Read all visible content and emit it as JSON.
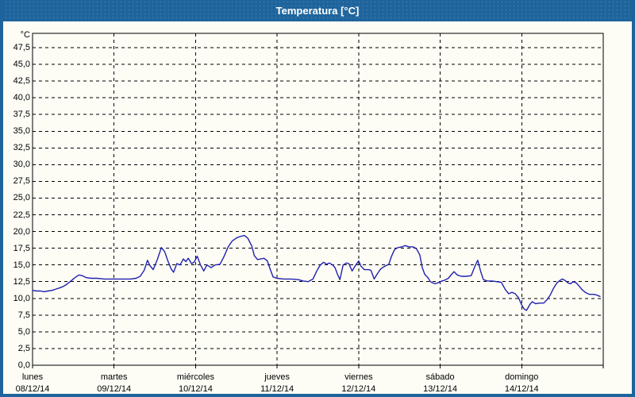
{
  "window": {
    "title": "Temperatura [°C]"
  },
  "colors": {
    "titlebar_bg": "#1e649c",
    "frame": "#1e649c",
    "content_bg": "#fdfdf6",
    "grid": "#000000",
    "line": "#2121b0",
    "title_text": "#ffffff",
    "label_text": "#000000"
  },
  "axes": {
    "y_unit": "°C",
    "y_ticks": [
      {
        "label": "47,5",
        "value": 47.5
      },
      {
        "label": "45,0",
        "value": 45.0
      },
      {
        "label": "42,5",
        "value": 42.5
      },
      {
        "label": "40,0",
        "value": 40.0
      },
      {
        "label": "37,5",
        "value": 37.5
      },
      {
        "label": "35,0",
        "value": 35.0
      },
      {
        "label": "32,5",
        "value": 32.5
      },
      {
        "label": "30,0",
        "value": 30.0
      },
      {
        "label": "27,5",
        "value": 27.5
      },
      {
        "label": "25,0",
        "value": 25.0
      },
      {
        "label": "22,5",
        "value": 22.5
      },
      {
        "label": "20,0",
        "value": 20.0
      },
      {
        "label": "17,5",
        "value": 17.5
      },
      {
        "label": "15,0",
        "value": 15.0
      },
      {
        "label": "12,5",
        "value": 12.5
      },
      {
        "label": "10,0",
        "value": 10.0
      },
      {
        "label": "7,5",
        "value": 7.5
      },
      {
        "label": "5,0",
        "value": 5.0
      },
      {
        "label": "2,5",
        "value": 2.5
      },
      {
        "label": "0,0",
        "value": 0.0
      }
    ],
    "x_days": [
      {
        "name": "lunes",
        "date": "08/12/14"
      },
      {
        "name": "martes",
        "date": "09/12/14"
      },
      {
        "name": "miércoles",
        "date": "10/12/14"
      },
      {
        "name": "jueves",
        "date": "11/12/14"
      },
      {
        "name": "viernes",
        "date": "12/12/14"
      },
      {
        "name": "sábado",
        "date": "13/12/14"
      },
      {
        "name": "domingo",
        "date": "14/12/14"
      }
    ]
  },
  "chart_data": {
    "type": "line",
    "title": "Temperatura [°C]",
    "ylabel": "°C",
    "ylim": [
      0,
      50
    ],
    "y_tick_step": 2.5,
    "grid": true,
    "legend": "none",
    "x_axis": "days, lunes 08/12/14 through domingo 14/12/14 (x = days since 08/12/14 00:00)",
    "series": [
      {
        "name": "Temperatura",
        "color": "#2121b0",
        "points": [
          [
            0.0,
            11.2
          ],
          [
            0.05,
            11.1
          ],
          [
            0.1,
            11.1
          ],
          [
            0.14,
            11.0
          ],
          [
            0.19,
            11.1
          ],
          [
            0.24,
            11.2
          ],
          [
            0.29,
            11.4
          ],
          [
            0.34,
            11.6
          ],
          [
            0.38,
            11.8
          ],
          [
            0.42,
            12.1
          ],
          [
            0.47,
            12.6
          ],
          [
            0.52,
            13.1
          ],
          [
            0.57,
            13.5
          ],
          [
            0.61,
            13.4
          ],
          [
            0.66,
            13.1
          ],
          [
            0.72,
            13.0
          ],
          [
            0.79,
            13.0
          ],
          [
            0.88,
            12.9
          ],
          [
            1.0,
            12.9
          ],
          [
            1.1,
            12.9
          ],
          [
            1.2,
            12.9
          ],
          [
            1.27,
            13.0
          ],
          [
            1.32,
            13.3
          ],
          [
            1.37,
            14.2
          ],
          [
            1.41,
            15.7
          ],
          [
            1.44,
            14.9
          ],
          [
            1.48,
            14.3
          ],
          [
            1.53,
            15.8
          ],
          [
            1.58,
            17.6
          ],
          [
            1.62,
            17.0
          ],
          [
            1.66,
            15.6
          ],
          [
            1.7,
            14.4
          ],
          [
            1.73,
            13.9
          ],
          [
            1.77,
            15.2
          ],
          [
            1.81,
            15.0
          ],
          [
            1.85,
            15.9
          ],
          [
            1.88,
            15.5
          ],
          [
            1.91,
            16.0
          ],
          [
            1.95,
            15.2
          ],
          [
            1.98,
            15.4
          ],
          [
            2.02,
            16.3
          ],
          [
            2.06,
            15.0
          ],
          [
            2.1,
            14.1
          ],
          [
            2.14,
            15.0
          ],
          [
            2.19,
            14.6
          ],
          [
            2.24,
            15.0
          ],
          [
            2.3,
            15.1
          ],
          [
            2.35,
            16.3
          ],
          [
            2.4,
            17.7
          ],
          [
            2.45,
            18.6
          ],
          [
            2.51,
            19.1
          ],
          [
            2.56,
            19.3
          ],
          [
            2.6,
            19.4
          ],
          [
            2.64,
            19.0
          ],
          [
            2.69,
            17.8
          ],
          [
            2.72,
            16.4
          ],
          [
            2.76,
            15.8
          ],
          [
            2.8,
            15.9
          ],
          [
            2.84,
            16.0
          ],
          [
            2.88,
            15.6
          ],
          [
            2.92,
            14.2
          ],
          [
            2.95,
            13.2
          ],
          [
            3.0,
            13.0
          ],
          [
            3.08,
            12.9
          ],
          [
            3.17,
            12.9
          ],
          [
            3.26,
            12.8
          ],
          [
            3.32,
            12.6
          ],
          [
            3.38,
            12.5
          ],
          [
            3.44,
            12.9
          ],
          [
            3.49,
            14.2
          ],
          [
            3.53,
            15.0
          ],
          [
            3.57,
            15.4
          ],
          [
            3.61,
            15.1
          ],
          [
            3.64,
            15.3
          ],
          [
            3.68,
            15.0
          ],
          [
            3.71,
            14.6
          ],
          [
            3.74,
            13.6
          ],
          [
            3.77,
            12.8
          ],
          [
            3.81,
            15.0
          ],
          [
            3.85,
            15.3
          ],
          [
            3.88,
            15.2
          ],
          [
            3.92,
            14.1
          ],
          [
            3.96,
            14.9
          ],
          [
            4.0,
            15.6
          ],
          [
            4.03,
            14.8
          ],
          [
            4.07,
            14.3
          ],
          [
            4.12,
            14.3
          ],
          [
            4.15,
            14.2
          ],
          [
            4.19,
            12.9
          ],
          [
            4.23,
            13.7
          ],
          [
            4.27,
            14.4
          ],
          [
            4.32,
            14.8
          ],
          [
            4.37,
            15.1
          ],
          [
            4.4,
            16.2
          ],
          [
            4.44,
            17.3
          ],
          [
            4.48,
            17.6
          ],
          [
            4.53,
            17.7
          ],
          [
            4.57,
            17.9
          ],
          [
            4.62,
            17.7
          ],
          [
            4.67,
            17.7
          ],
          [
            4.71,
            17.4
          ],
          [
            4.75,
            16.5
          ],
          [
            4.78,
            14.6
          ],
          [
            4.81,
            13.6
          ],
          [
            4.85,
            13.1
          ],
          [
            4.88,
            12.5
          ],
          [
            4.93,
            12.2
          ],
          [
            4.97,
            12.3
          ],
          [
            5.0,
            12.5
          ],
          [
            5.05,
            12.7
          ],
          [
            5.1,
            13.0
          ],
          [
            5.14,
            13.6
          ],
          [
            5.17,
            14.0
          ],
          [
            5.21,
            13.5
          ],
          [
            5.26,
            13.3
          ],
          [
            5.32,
            13.3
          ],
          [
            5.38,
            13.4
          ],
          [
            5.43,
            14.9
          ],
          [
            5.46,
            15.7
          ],
          [
            5.5,
            13.9
          ],
          [
            5.53,
            12.8
          ],
          [
            5.58,
            12.6
          ],
          [
            5.64,
            12.6
          ],
          [
            5.69,
            12.5
          ],
          [
            5.75,
            12.4
          ],
          [
            5.8,
            11.3
          ],
          [
            5.84,
            10.7
          ],
          [
            5.88,
            10.9
          ],
          [
            5.92,
            10.7
          ],
          [
            5.96,
            10.1
          ],
          [
            6.0,
            9.0
          ],
          [
            6.03,
            8.4
          ],
          [
            6.06,
            8.2
          ],
          [
            6.1,
            9.1
          ],
          [
            6.13,
            9.5
          ],
          [
            6.17,
            9.2
          ],
          [
            6.22,
            9.3
          ],
          [
            6.27,
            9.3
          ],
          [
            6.31,
            9.8
          ],
          [
            6.35,
            10.5
          ],
          [
            6.39,
            11.5
          ],
          [
            6.43,
            12.3
          ],
          [
            6.47,
            12.7
          ],
          [
            6.5,
            12.9
          ],
          [
            6.53,
            12.7
          ],
          [
            6.57,
            12.3
          ],
          [
            6.6,
            12.2
          ],
          [
            6.63,
            12.5
          ],
          [
            6.67,
            12.3
          ],
          [
            6.7,
            11.9
          ],
          [
            6.74,
            11.3
          ],
          [
            6.78,
            10.9
          ],
          [
            6.83,
            10.6
          ],
          [
            6.88,
            10.6
          ],
          [
            6.92,
            10.5
          ],
          [
            6.96,
            10.3
          ]
        ]
      }
    ]
  }
}
